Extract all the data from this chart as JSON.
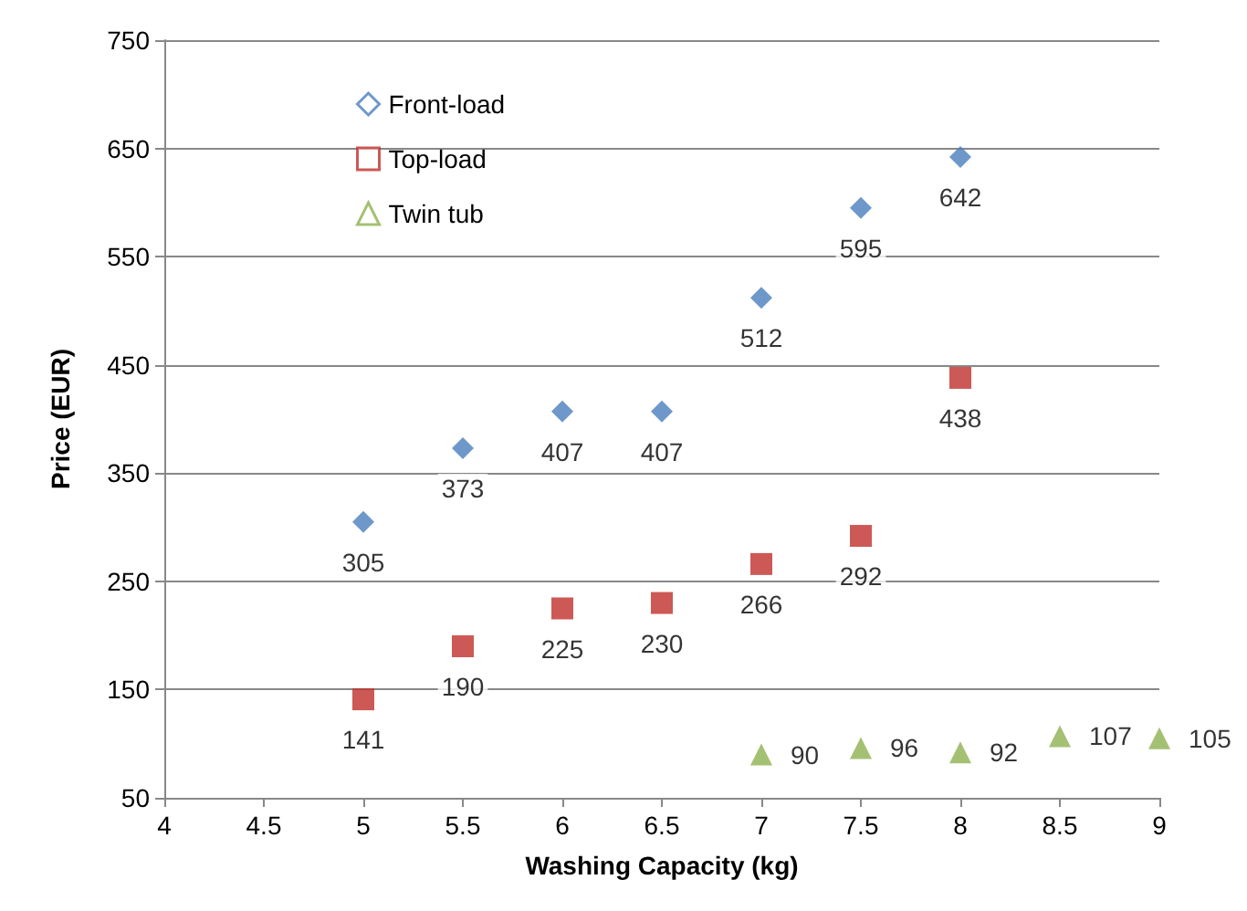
{
  "chart_data": {
    "type": "scatter",
    "xlabel": "Washing Capacity (kg)",
    "ylabel": "Price (EUR)",
    "xlim": [
      4,
      9
    ],
    "xticks": [
      4,
      4.5,
      5,
      5.5,
      6,
      6.5,
      7,
      7.5,
      8,
      8.5,
      9
    ],
    "ylim": [
      50,
      750
    ],
    "yticks": [
      50,
      150,
      250,
      350,
      450,
      550,
      650,
      750
    ],
    "grid": "y",
    "legend": "top left",
    "data_labels": true,
    "series": [
      {
        "name": "Front-load",
        "color": "#4a7ebb",
        "marker": "diamond",
        "x": [
          5,
          5.5,
          6,
          6.5,
          7,
          7.5,
          8
        ],
        "values": [
          305,
          373,
          407,
          407,
          512,
          595,
          642
        ]
      },
      {
        "name": "Top-load",
        "color": "#c0302c",
        "marker": "square",
        "x": [
          5,
          5.5,
          6,
          6.5,
          7,
          7.5,
          8
        ],
        "values": [
          141,
          190,
          225,
          230,
          266,
          292,
          438
        ]
      },
      {
        "name": "Twin tub",
        "color": "#8db150",
        "marker": "triangle",
        "x": [
          7,
          7.5,
          8,
          8.5,
          9
        ],
        "values": [
          90,
          96,
          92,
          107,
          105
        ]
      }
    ]
  }
}
